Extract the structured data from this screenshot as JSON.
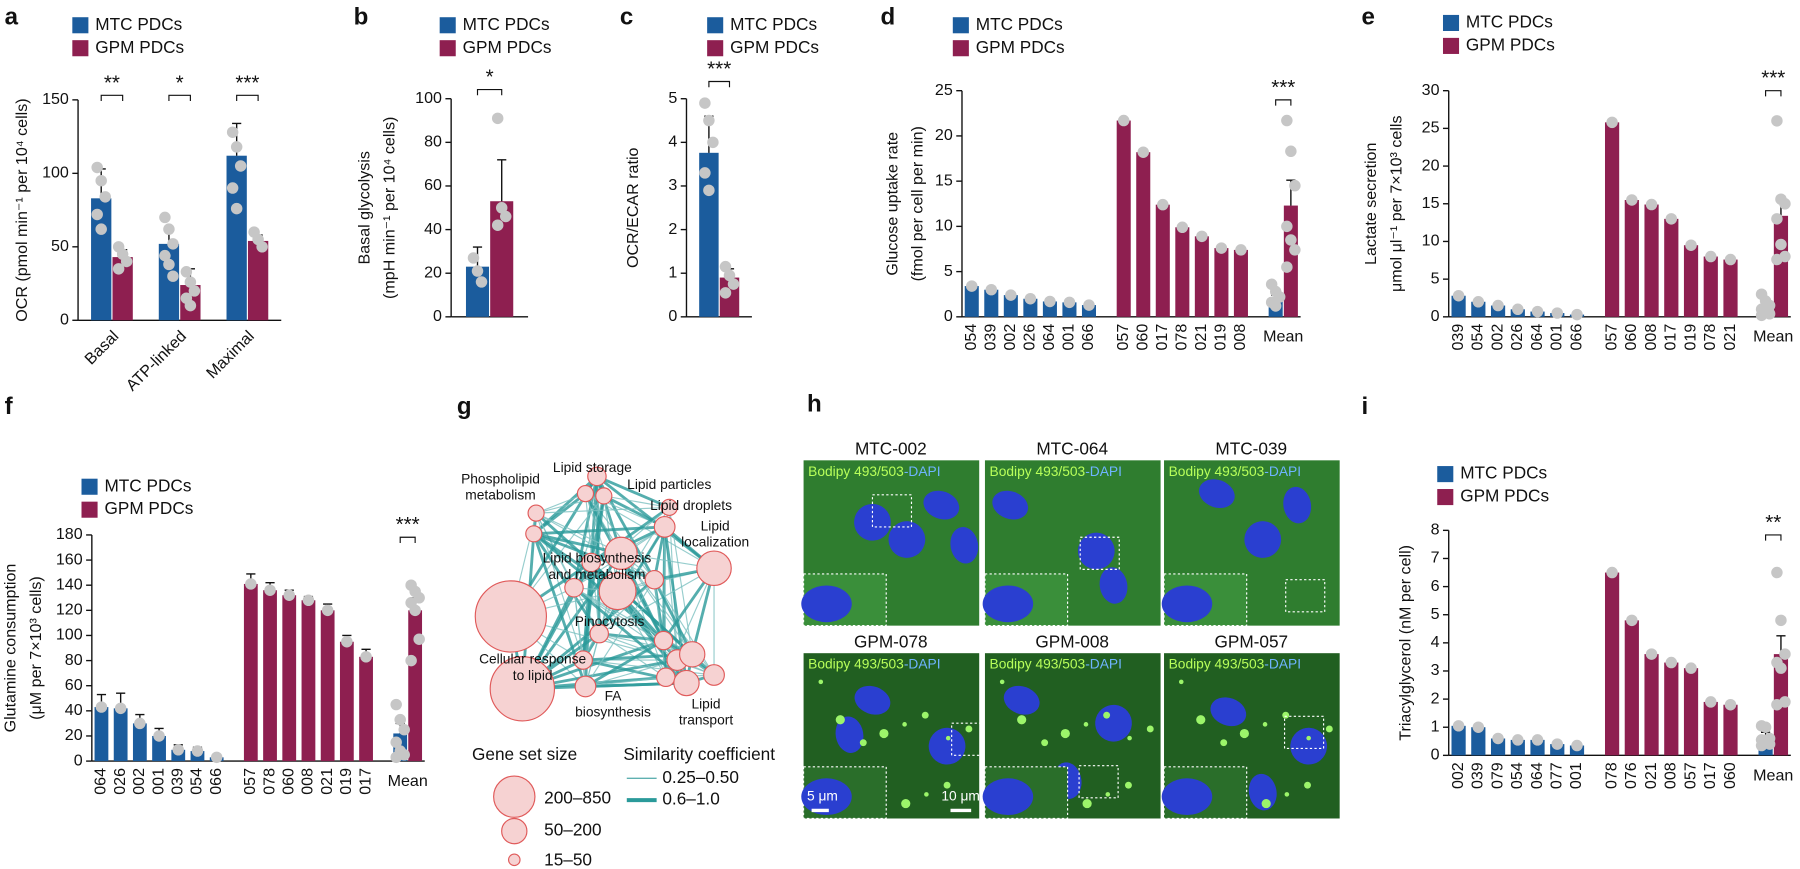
{
  "chart_data": [
    {
      "label": "a",
      "type": "bar",
      "ylabel": [
        "OCR (pmol min⁻¹ per 10⁴ cells)"
      ],
      "categories": [
        "Basal",
        "ATP-linked",
        "Maximal"
      ],
      "series": [
        {
          "name": "MTC PDCs",
          "color": "#1b5c9d",
          "values": [
            83,
            52,
            112
          ],
          "errors": [
            20,
            10,
            22
          ],
          "points": [
            [
              104,
              95,
              84,
              72,
              62
            ],
            [
              70,
              62,
              52,
              44,
              38,
              30
            ],
            [
              128,
              118,
              105,
              90,
              76
            ]
          ]
        },
        {
          "name": "GPM PDCs",
          "color": "#8e1f50",
          "values": [
            43,
            24,
            54
          ],
          "errors": [
            5,
            11,
            4
          ],
          "points": [
            [
              50,
              45,
              40,
              35
            ],
            [
              33,
              26,
              20,
              15,
              10
            ],
            [
              60,
              55,
              50
            ]
          ]
        }
      ],
      "significance": [
        "**",
        "*",
        "***"
      ],
      "ylim": [
        0,
        150
      ],
      "yticks": [
        0,
        50,
        100,
        150
      ]
    },
    {
      "label": "b",
      "type": "bar",
      "ylabel": [
        "Basal glycolysis",
        "(mpH min⁻¹ per 10⁴ cells)"
      ],
      "categories": [
        null
      ],
      "series": [
        {
          "name": "MTC PDCs",
          "color": "#1b5c9d",
          "values": [
            23
          ],
          "errors": [
            9
          ],
          "points": [
            [
              27,
              21,
              16
            ]
          ]
        },
        {
          "name": "GPM PDCs",
          "color": "#8e1f50",
          "values": [
            53
          ],
          "errors": [
            19
          ],
          "points": [
            [
              91,
              50,
              46,
              42
            ]
          ]
        }
      ],
      "significance": [
        "*"
      ],
      "ylim": [
        0,
        100
      ],
      "yticks": [
        0,
        20,
        40,
        60,
        80,
        100
      ]
    },
    {
      "label": "c",
      "type": "bar",
      "ylabel": [
        "OCR/ECAR ratio"
      ],
      "categories": [
        null
      ],
      "series": [
        {
          "name": "MTC PDCs",
          "color": "#1b5c9d",
          "values": [
            3.76
          ],
          "errors": [
            0.84
          ],
          "points": [
            [
              4.9,
              4.5,
              4.0,
              3.3,
              2.9
            ]
          ]
        },
        {
          "name": "GPM PDCs",
          "color": "#8e1f50",
          "values": [
            0.9
          ],
          "errors": [
            0.2
          ],
          "points": [
            [
              1.15,
              0.95,
              0.75,
              0.55
            ]
          ]
        }
      ],
      "significance": [
        "***"
      ],
      "ylim": [
        0,
        5
      ],
      "yticks": [
        0,
        1,
        2,
        3,
        4,
        5
      ]
    },
    {
      "label": "d",
      "type": "bar",
      "ylabel": [
        "Glucose uptake rate",
        "(fmol per cell per min)"
      ],
      "categories": [
        "054",
        "039",
        "002",
        "026",
        "064",
        "001",
        "066",
        "057",
        "060",
        "017",
        "078",
        "021",
        "019",
        "008",
        "Mean"
      ],
      "series": [
        {
          "name": "MTC PDCs",
          "color": "#1b5c9d",
          "values": [
            3.4,
            3.0,
            2.4,
            2.0,
            1.7,
            1.6,
            1.3,
            null,
            null,
            null,
            null,
            null,
            null,
            null,
            2.1
          ],
          "errors": [
            null,
            null,
            null,
            null,
            null,
            null,
            null,
            null,
            null,
            null,
            null,
            null,
            null,
            null,
            0.3
          ],
          "points": [
            null,
            null,
            null,
            null,
            null,
            null,
            null,
            null,
            null,
            null,
            null,
            null,
            null,
            null,
            [
              3.6,
              2.8,
              2.2,
              1.6,
              1.2
            ]
          ]
        },
        {
          "name": "GPM PDCs",
          "color": "#8e1f50",
          "values": [
            null,
            null,
            null,
            null,
            null,
            null,
            null,
            21.7,
            18.2,
            12.4,
            9.9,
            8.9,
            7.6,
            7.4,
            12.3
          ],
          "errors": [
            null,
            null,
            null,
            null,
            null,
            null,
            null,
            null,
            null,
            null,
            null,
            null,
            null,
            null,
            2.8
          ],
          "points": [
            null,
            null,
            null,
            null,
            null,
            null,
            null,
            null,
            null,
            null,
            null,
            null,
            null,
            null,
            [
              21.7,
              18.3,
              14.5,
              10,
              8.5,
              7.4,
              5.5
            ]
          ]
        }
      ],
      "dot_on_bar": true,
      "significance": [
        null,
        null,
        null,
        null,
        null,
        null,
        null,
        null,
        null,
        null,
        null,
        null,
        null,
        null,
        "***"
      ],
      "ylim": [
        0,
        25
      ],
      "yticks": [
        0,
        5,
        10,
        15,
        20,
        25
      ]
    },
    {
      "label": "e",
      "type": "bar",
      "ylabel": [
        "Lactate secretion",
        "μmol μl⁻¹ per 7×10³ cells"
      ],
      "categories": [
        "039",
        "054",
        "002",
        "026",
        "064",
        "001",
        "066",
        "057",
        "060",
        "008",
        "017",
        "019",
        "078",
        "021",
        "Mean"
      ],
      "series": [
        {
          "name": "MTC PDCs",
          "color": "#1b5c9d",
          "values": [
            2.8,
            2.0,
            1.5,
            1.0,
            0.7,
            0.5,
            0.3,
            null,
            null,
            null,
            null,
            null,
            null,
            null,
            1.2
          ],
          "errors": [
            null,
            null,
            null,
            null,
            null,
            null,
            null,
            null,
            null,
            null,
            null,
            null,
            null,
            null,
            0.5
          ],
          "points": [
            null,
            null,
            null,
            null,
            null,
            null,
            null,
            null,
            null,
            null,
            null,
            null,
            null,
            null,
            [
              3.0,
              2.1,
              1.5,
              1.0,
              0.7,
              0.4,
              0.2
            ]
          ]
        },
        {
          "name": "GPM PDCs",
          "color": "#8e1f50",
          "values": [
            null,
            null,
            null,
            null,
            null,
            null,
            null,
            25.8,
            15.5,
            14.9,
            13.0,
            9.5,
            8.0,
            7.6,
            13.4
          ],
          "errors": [
            null,
            null,
            null,
            null,
            null,
            null,
            null,
            null,
            null,
            null,
            null,
            null,
            null,
            null,
            2.4
          ],
          "points": [
            null,
            null,
            null,
            null,
            null,
            null,
            null,
            null,
            null,
            null,
            null,
            null,
            null,
            null,
            [
              26.0,
              15.6,
              15.0,
              13.0,
              9.6,
              8.0,
              7.6
            ]
          ]
        }
      ],
      "dot_on_bar": true,
      "significance": [
        null,
        null,
        null,
        null,
        null,
        null,
        null,
        null,
        null,
        null,
        null,
        null,
        null,
        null,
        "***"
      ],
      "ylim": [
        0,
        30
      ],
      "yticks": [
        0,
        5,
        10,
        15,
        20,
        25,
        30
      ]
    },
    {
      "label": "f",
      "type": "bar",
      "ylabel": [
        "Glutamine consumption",
        "(μM per 7×10³ cells)"
      ],
      "categories": [
        "064",
        "026",
        "002",
        "001",
        "039",
        "054",
        "066",
        "057",
        "078",
        "060",
        "008",
        "021",
        "019",
        "017",
        "Mean"
      ],
      "series": [
        {
          "name": "MTC PDCs",
          "color": "#1b5c9d",
          "values": [
            43,
            42,
            30,
            20,
            9,
            8,
            3,
            null,
            null,
            null,
            null,
            null,
            null,
            null,
            22
          ],
          "errors": [
            10,
            12,
            7,
            6,
            4,
            3,
            2,
            null,
            null,
            null,
            null,
            null,
            null,
            null,
            8
          ],
          "points": [
            null,
            null,
            null,
            null,
            null,
            null,
            null,
            null,
            null,
            null,
            null,
            null,
            null,
            null,
            [
              45,
              33,
              25,
              15,
              8,
              5,
              3
            ]
          ]
        },
        {
          "name": "GPM PDCs",
          "color": "#8e1f50",
          "values": [
            null,
            null,
            null,
            null,
            null,
            null,
            null,
            141,
            136,
            132,
            128,
            120,
            95,
            83,
            120
          ],
          "errors": [
            null,
            null,
            null,
            null,
            null,
            null,
            null,
            8,
            6,
            4,
            3,
            5,
            5,
            6,
            10
          ],
          "points": [
            null,
            null,
            null,
            null,
            null,
            null,
            null,
            null,
            null,
            null,
            null,
            null,
            null,
            null,
            [
              140,
              135,
              130,
              126,
              120,
              97,
              80
            ]
          ]
        }
      ],
      "dot_on_bar": true,
      "significance": [
        null,
        null,
        null,
        null,
        null,
        null,
        null,
        null,
        null,
        null,
        null,
        null,
        null,
        null,
        "***"
      ],
      "ylim": [
        0,
        180
      ],
      "yticks": [
        0,
        20,
        40,
        60,
        80,
        100,
        120,
        140,
        160,
        180
      ]
    },
    {
      "label": "i",
      "type": "bar",
      "ylabel": [
        "Triacylglycerol (nM per cell)"
      ],
      "categories": [
        "002",
        "039",
        "079",
        "054",
        "064",
        "077",
        "001",
        "078",
        "076",
        "021",
        "008",
        "057",
        "017",
        "060",
        "Mean"
      ],
      "series": [
        {
          "name": "MTC PDCs",
          "color": "#1b5c9d",
          "values": [
            1.05,
            1.0,
            0.6,
            0.55,
            0.55,
            0.4,
            0.35,
            null,
            null,
            null,
            null,
            null,
            null,
            null,
            0.7
          ],
          "errors": [
            null,
            null,
            null,
            null,
            null,
            null,
            null,
            null,
            null,
            null,
            null,
            null,
            null,
            null,
            0.12
          ],
          "points": [
            null,
            null,
            null,
            null,
            null,
            null,
            null,
            null,
            null,
            null,
            null,
            null,
            null,
            null,
            [
              1.05,
              1.0,
              0.6,
              0.55,
              0.5,
              0.4,
              0.35
            ]
          ]
        },
        {
          "name": "GPM PDCs",
          "color": "#8e1f50",
          "values": [
            null,
            null,
            null,
            null,
            null,
            null,
            null,
            6.5,
            4.8,
            3.6,
            3.3,
            3.1,
            1.9,
            1.8,
            3.6
          ],
          "errors": [
            null,
            null,
            null,
            null,
            null,
            null,
            null,
            null,
            null,
            null,
            null,
            null,
            null,
            null,
            0.65
          ],
          "points": [
            null,
            null,
            null,
            null,
            null,
            null,
            null,
            null,
            null,
            null,
            null,
            null,
            null,
            null,
            [
              6.5,
              4.8,
              3.6,
              3.3,
              3.1,
              1.9,
              1.8
            ]
          ]
        }
      ],
      "dot_on_bar": true,
      "significance": [
        null,
        null,
        null,
        null,
        null,
        null,
        null,
        null,
        null,
        null,
        null,
        null,
        null,
        null,
        "**"
      ],
      "ylim": [
        0,
        8
      ],
      "yticks": [
        0,
        1,
        2,
        3,
        4,
        5,
        6,
        7,
        8
      ]
    }
  ],
  "network": {
    "label": "g",
    "nodes": [
      [
        "Phospholipid",
        "metabolism"
      ],
      [
        "Lipid storage"
      ],
      [
        "Lipid particles"
      ],
      [
        "Lipid droplets"
      ],
      [
        "Lipid",
        "localization"
      ],
      [
        "Lipid biosynthesis",
        "and metabolism"
      ],
      [
        "Pinocytosis"
      ],
      [
        "Cellular response",
        "to lipid"
      ],
      [
        "FA",
        "biosynthesis"
      ],
      [
        "Lipid",
        "transport"
      ]
    ],
    "size_legend": {
      "title": "Gene set size",
      "items": [
        "200–850",
        "50–200",
        "15–50"
      ]
    },
    "similarity_legend": {
      "title": "Similarity coefficient",
      "items": [
        "0.25–0.50",
        "0.6–1.0"
      ]
    }
  },
  "micrographs": {
    "label": "h",
    "titles": [
      "MTC-002",
      "MTC-064",
      "MTC-039",
      "GPM-078",
      "GPM-008",
      "GPM-057"
    ],
    "stain": [
      "Bodipy 493/503",
      "-DAPI"
    ],
    "scale_bars": [
      "5 μm",
      "10 μm"
    ]
  }
}
